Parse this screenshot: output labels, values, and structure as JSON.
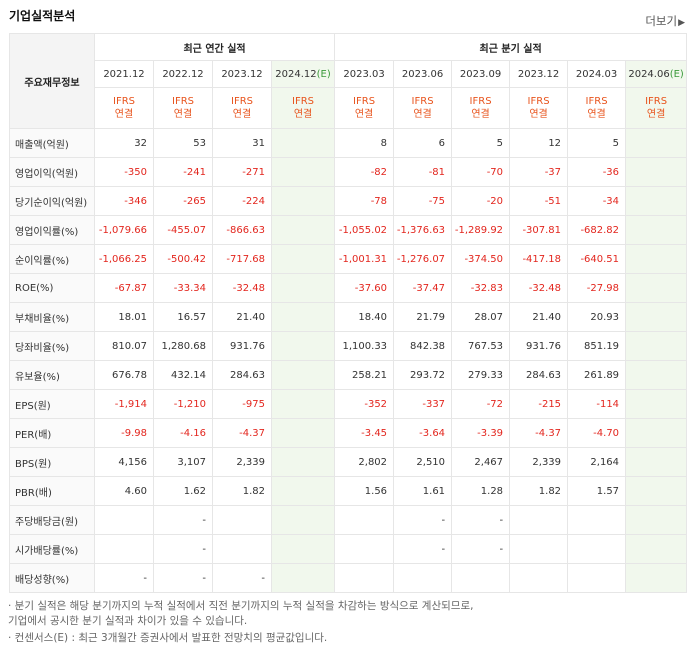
{
  "header": {
    "title": "기업실적분석",
    "more_label": "더보기",
    "more_arrow": "▶"
  },
  "table": {
    "row_header_label": "주요재무정보",
    "groups": [
      {
        "label": "최근 연간 실적"
      },
      {
        "label": "최근 분기 실적"
      }
    ],
    "periods": [
      {
        "label": "2021.12",
        "est": ""
      },
      {
        "label": "2022.12",
        "est": ""
      },
      {
        "label": "2023.12",
        "est": ""
      },
      {
        "label": "2024.12",
        "est": "(E)"
      },
      {
        "label": "2023.03",
        "est": ""
      },
      {
        "label": "2023.06",
        "est": ""
      },
      {
        "label": "2023.09",
        "est": ""
      },
      {
        "label": "2023.12",
        "est": ""
      },
      {
        "label": "2024.03",
        "est": ""
      },
      {
        "label": "2024.06",
        "est": "(E)"
      }
    ],
    "ifrs_line1": "IFRS",
    "ifrs_line2": "연결",
    "rows": [
      {
        "label": "매출액(억원)",
        "values": [
          "32",
          "53",
          "31",
          "",
          "8",
          "6",
          "5",
          "12",
          "5",
          ""
        ]
      },
      {
        "label": "영업이익(억원)",
        "values": [
          "-350",
          "-241",
          "-271",
          "",
          "-82",
          "-81",
          "-70",
          "-37",
          "-36",
          ""
        ]
      },
      {
        "label": "당기순이익(억원)",
        "values": [
          "-346",
          "-265",
          "-224",
          "",
          "-78",
          "-75",
          "-20",
          "-51",
          "-34",
          ""
        ]
      },
      {
        "label": "영업이익률(%)",
        "values": [
          "-1,079.66",
          "-455.07",
          "-866.63",
          "",
          "-1,055.02",
          "-1,376.63",
          "-1,289.92",
          "-307.81",
          "-682.82",
          ""
        ]
      },
      {
        "label": "순이익률(%)",
        "values": [
          "-1,066.25",
          "-500.42",
          "-717.68",
          "",
          "-1,001.31",
          "-1,276.07",
          "-374.50",
          "-417.18",
          "-640.51",
          ""
        ]
      },
      {
        "label": "ROE(%)",
        "values": [
          "-67.87",
          "-33.34",
          "-32.48",
          "",
          "-37.60",
          "-37.47",
          "-32.83",
          "-32.48",
          "-27.98",
          ""
        ]
      },
      {
        "label": "부채비율(%)",
        "values": [
          "18.01",
          "16.57",
          "21.40",
          "",
          "18.40",
          "21.79",
          "28.07",
          "21.40",
          "20.93",
          ""
        ]
      },
      {
        "label": "당좌비율(%)",
        "values": [
          "810.07",
          "1,280.68",
          "931.76",
          "",
          "1,100.33",
          "842.38",
          "767.53",
          "931.76",
          "851.19",
          ""
        ]
      },
      {
        "label": "유보율(%)",
        "values": [
          "676.78",
          "432.14",
          "284.63",
          "",
          "258.21",
          "293.72",
          "279.33",
          "284.63",
          "261.89",
          ""
        ]
      },
      {
        "label": "EPS(원)",
        "values": [
          "-1,914",
          "-1,210",
          "-975",
          "",
          "-352",
          "-337",
          "-72",
          "-215",
          "-114",
          ""
        ]
      },
      {
        "label": "PER(배)",
        "values": [
          "-9.98",
          "-4.16",
          "-4.37",
          "",
          "-3.45",
          "-3.64",
          "-3.39",
          "-4.37",
          "-4.70",
          ""
        ]
      },
      {
        "label": "BPS(원)",
        "values": [
          "4,156",
          "3,107",
          "2,339",
          "",
          "2,802",
          "2,510",
          "2,467",
          "2,339",
          "2,164",
          ""
        ]
      },
      {
        "label": "PBR(배)",
        "values": [
          "4.60",
          "1.62",
          "1.82",
          "",
          "1.56",
          "1.61",
          "1.28",
          "1.82",
          "1.57",
          ""
        ]
      },
      {
        "label": "주당배당금(원)",
        "values": [
          "",
          "-",
          "",
          "",
          "",
          "-",
          "-",
          "",
          "",
          ""
        ]
      },
      {
        "label": "시가배당률(%)",
        "values": [
          "",
          "-",
          "",
          "",
          "",
          "-",
          "-",
          "",
          "",
          ""
        ]
      },
      {
        "label": "배당성향(%)",
        "values": [
          "-",
          "-",
          "-",
          "",
          "",
          "",
          "",
          "",
          "",
          ""
        ]
      }
    ]
  },
  "footnotes": [
    "· 분기 실적은 해당 분기까지의 누적 실적에서 직전 분기까지의 누적 실적을 차감하는 방식으로 계산되므로,",
    "  기업에서 공시한 분기 실적과 차이가 있을 수 있습니다.",
    "· 컨센서스(E) : 최근 3개월간 증권사에서 발표한 전망치의 평균값입니다."
  ]
}
